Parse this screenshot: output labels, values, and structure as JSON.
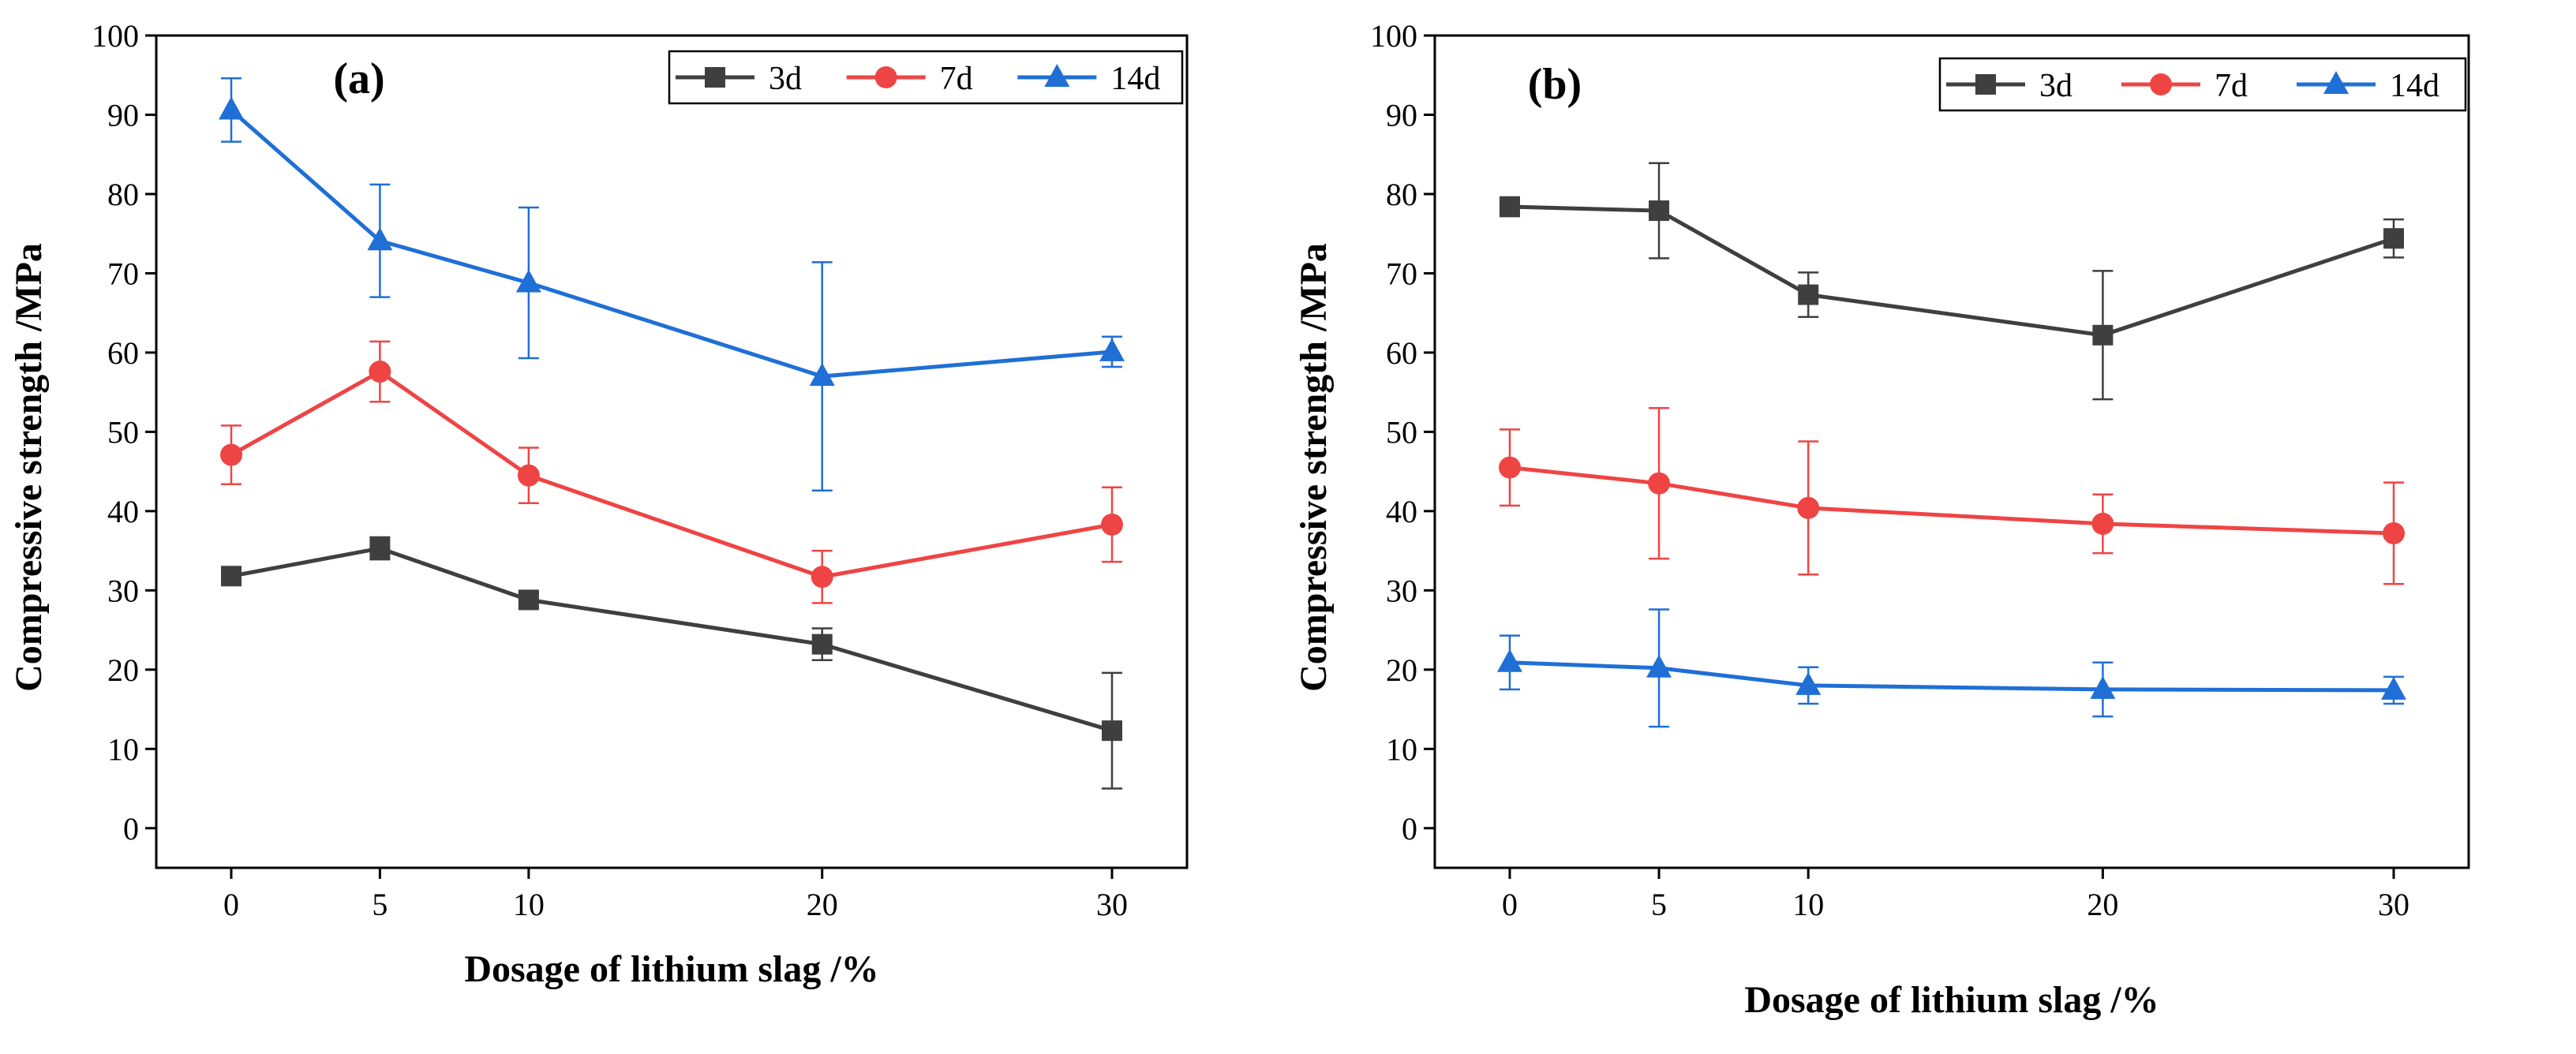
{
  "chart_data": [
    {
      "type": "line",
      "panel_label": "(a)",
      "x": [
        0,
        5,
        10,
        20,
        30
      ],
      "x_ticks": [
        "0",
        "5",
        "10",
        "20",
        "30"
      ],
      "xlabel": "Dosage of lithium slag /%",
      "ylabel": "Compressive strength /MPa",
      "ylim": [
        -5,
        100
      ],
      "y_ticks": [
        "0",
        "10",
        "20",
        "30",
        "40",
        "50",
        "60",
        "70",
        "80",
        "90",
        "100"
      ],
      "legend_position": "top-right",
      "series": [
        {
          "name": "3d",
          "color": "#3f3f3f",
          "marker": "square",
          "values": [
            31.8,
            35.3,
            28.8,
            23.2,
            12.3
          ],
          "errors": [
            1.0,
            1.4,
            0.9,
            2.0,
            7.3
          ]
        },
        {
          "name": "7d",
          "color": "#ef4444",
          "marker": "circle",
          "values": [
            47.1,
            57.6,
            44.5,
            31.7,
            38.3
          ],
          "errors": [
            3.7,
            3.8,
            3.5,
            3.3,
            4.7
          ]
        },
        {
          "name": "14d",
          "color": "#1f6fd6",
          "marker": "triangle",
          "values": [
            90.6,
            74.1,
            68.8,
            57.0,
            60.1
          ],
          "errors": [
            4.0,
            7.1,
            9.5,
            14.4,
            1.9
          ]
        }
      ]
    },
    {
      "type": "line",
      "panel_label": "(b)",
      "x": [
        0,
        5,
        10,
        20,
        30
      ],
      "x_ticks": [
        "0",
        "5",
        "10",
        "20",
        "30"
      ],
      "xlabel": "Dosage of lithium slag /%",
      "ylabel": "Compressive strength /MPa",
      "ylim": [
        -5,
        100
      ],
      "y_ticks": [
        "0",
        "10",
        "20",
        "30",
        "40",
        "50",
        "60",
        "70",
        "80",
        "90",
        "100"
      ],
      "legend_position": "top-right",
      "series": [
        {
          "name": "3d",
          "color": "#3f3f3f",
          "marker": "square",
          "values": [
            78.4,
            77.9,
            67.3,
            62.2,
            74.4
          ],
          "errors": [
            1.2,
            6.0,
            2.8,
            8.1,
            2.4
          ]
        },
        {
          "name": "7d",
          "color": "#ef4444",
          "marker": "circle",
          "values": [
            45.5,
            43.5,
            40.4,
            38.4,
            37.2
          ],
          "errors": [
            4.8,
            9.5,
            8.4,
            3.7,
            6.4
          ]
        },
        {
          "name": "14d",
          "color": "#1f6fd6",
          "marker": "triangle",
          "values": [
            20.9,
            20.2,
            18.0,
            17.5,
            17.4
          ],
          "errors": [
            3.4,
            7.4,
            2.3,
            3.4,
            1.7
          ]
        }
      ]
    }
  ]
}
